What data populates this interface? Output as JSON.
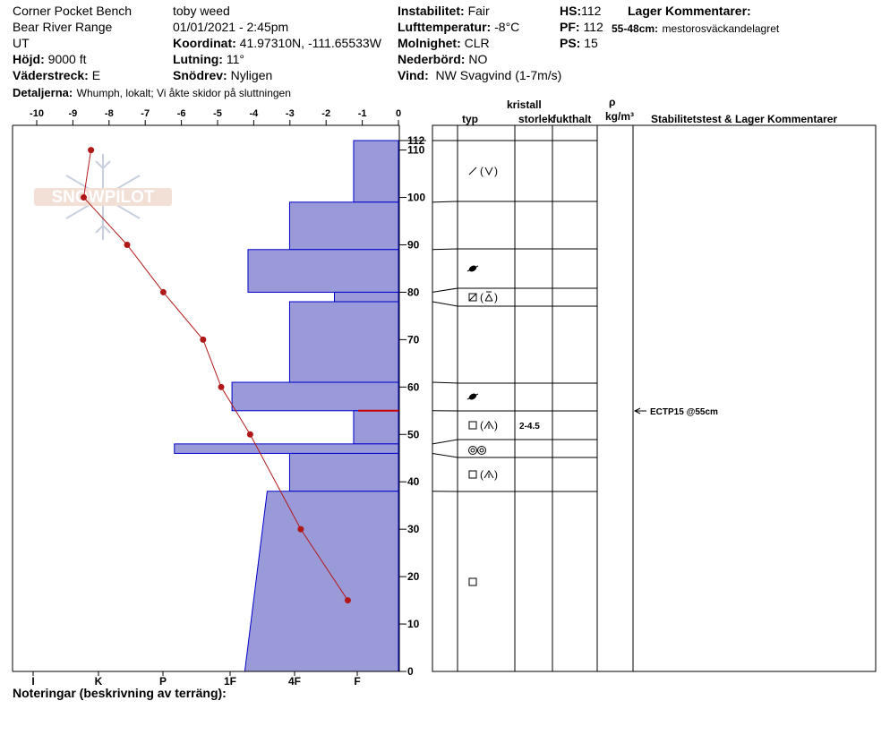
{
  "header": {
    "location": "Corner Pocket Bench",
    "range": "Bear River Range",
    "state": "UT",
    "observer": "toby weed",
    "datetime": "01/01/2021 - 2:45pm",
    "elevation_label": "Höjd:",
    "elevation_value": "9000 ft",
    "aspect_label": "Väderstreck:",
    "aspect_value": "E",
    "coord_label": "Koordinat:",
    "coord_value": "41.97310N, -111.65533W",
    "slope_label": "Lutning:",
    "slope_value": "11°",
    "drift_label": "Snödrev:",
    "drift_value": "Nyligen",
    "stability_label": "Instabilitet:",
    "stability_value": "Fair",
    "airtemp_label": "Lufttemperatur:",
    "airtemp_value": "-8°C",
    "sky_label": "Molnighet:",
    "sky_value": "CLR",
    "precip_label": "Nederbörd:",
    "precip_value": "NO",
    "wind_label": "Vind:",
    "wind_value": "NW Svagvind (1-7m/s)",
    "hs_label": "HS:",
    "hs_value": "112",
    "pf_label": "PF:",
    "pf_value": "112",
    "ps_label": "PS:",
    "ps_value": "15",
    "layer_comments_label": "Lager Kommentarer:",
    "layer_comment_depth": "55-48cm:",
    "layer_comment_text": "mestorosväckandelagret",
    "details_label": "Detaljerna:",
    "details_value": "Whumph, lokalt; Vi åkte skidor på sluttningen"
  },
  "columns": {
    "crystal": "kristall",
    "type": "typ",
    "size": "storlek",
    "moisture": "fukthalt",
    "rho": "ρ",
    "density_unit": "kg/m³",
    "stability": "Stabilitetstest & Lager Kommentarer"
  },
  "footer": {
    "notes_label": "Noteringar (beskrivning av terräng):"
  },
  "watermark": "SNOWPILOT",
  "colors": {
    "hardness_fill": "#9a9ad8",
    "hardness_stroke": "#0000cc",
    "temperature": "#b01818",
    "weak_layer": "#cc0000"
  },
  "chart_data": {
    "type": "area",
    "ylabel": "",
    "ylim": [
      0,
      112
    ],
    "y_ticks": [
      0,
      10,
      20,
      30,
      40,
      50,
      60,
      70,
      80,
      90,
      100,
      110
    ],
    "hs_tick": 112,
    "temperature_axis": {
      "range": [
        -10.5,
        0
      ],
      "ticks": [
        -10,
        -9,
        -8,
        -7,
        -6,
        -5,
        -4,
        -3,
        -2,
        -1,
        0
      ]
    },
    "hardness_axis": {
      "categories": [
        "I",
        "K",
        "P",
        "1F",
        "4F",
        "F"
      ],
      "category_values": [
        5,
        4,
        3,
        2,
        1,
        0
      ],
      "range": [
        0,
        5.5
      ]
    },
    "hardness_profile": [
      {
        "top": 112,
        "bottom": 99,
        "hardness": 0.7
      },
      {
        "top": 99,
        "bottom": 89,
        "hardness": 1.7
      },
      {
        "top": 89,
        "bottom": 80,
        "hardness": 2.35
      },
      {
        "top": 80,
        "bottom": 78,
        "hardness": 1.0
      },
      {
        "top": 78,
        "bottom": 61,
        "hardness": 1.7
      },
      {
        "top": 61,
        "bottom": 55,
        "hardness": 2.6
      },
      {
        "top": 55,
        "bottom": 48,
        "hardness": 0.7
      },
      {
        "top": 48,
        "bottom": 46,
        "hardness": 3.5
      },
      {
        "top": 46,
        "bottom": 38,
        "hardness": 1.7
      },
      {
        "top": 38,
        "bottom": 0,
        "hardness_top": 2.05,
        "hardness_bottom": 2.4
      }
    ],
    "temperature_profile": [
      {
        "height": 110,
        "temp": -8.5
      },
      {
        "height": 100,
        "temp": -8.7
      },
      {
        "height": 90,
        "temp": -7.5
      },
      {
        "height": 80,
        "temp": -6.5
      },
      {
        "height": 70,
        "temp": -5.4
      },
      {
        "height": 60,
        "temp": -4.9
      },
      {
        "height": 50,
        "temp": -4.1
      },
      {
        "height": 30,
        "temp": -2.7
      },
      {
        "height": 15,
        "temp": -1.4
      }
    ],
    "weak_layer_height": 55,
    "layers": [
      {
        "top": 112,
        "bottom": 99,
        "type": "/ (V)"
      },
      {
        "top": 99,
        "bottom": 89,
        "type": ""
      },
      {
        "top": 89,
        "bottom": 80,
        "type": "melt-freeze"
      },
      {
        "top": 80,
        "bottom": 78,
        "type": "faceted (surface hoar)"
      },
      {
        "top": 78,
        "bottom": 61,
        "type": ""
      },
      {
        "top": 61,
        "bottom": 55,
        "type": "melt-freeze"
      },
      {
        "top": 55,
        "bottom": 48,
        "type": "faceted (depth hoar)",
        "size": "2-4.5"
      },
      {
        "top": 48,
        "bottom": 46,
        "type": "rounded"
      },
      {
        "top": 46,
        "bottom": 38,
        "type": "faceted (depth hoar)"
      },
      {
        "top": 38,
        "bottom": 0,
        "type": "faceted"
      }
    ],
    "stability_tests": [
      {
        "height": 55,
        "label": "ECTP15 @55cm"
      }
    ]
  }
}
